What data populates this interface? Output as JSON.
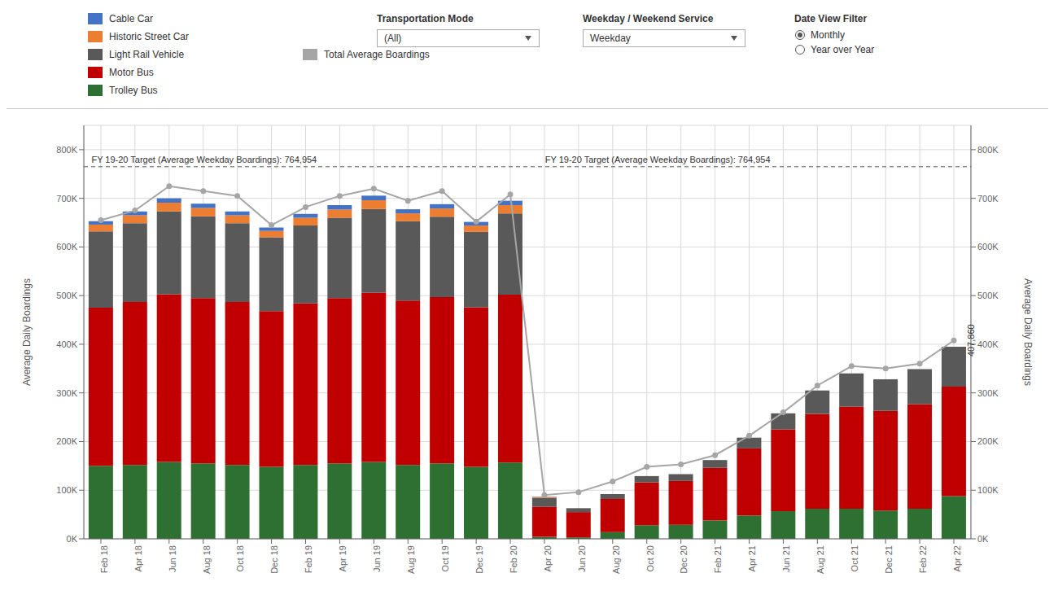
{
  "chart_data": {
    "type": "bar",
    "stacked": true,
    "grid": true,
    "y_label": "Average Daily Boardings",
    "y2_label": "Average Daily Boardings",
    "categories": [
      "Feb 18",
      "Apr 18",
      "Jun 18",
      "Aug 18",
      "Oct 18",
      "Dec 18",
      "Feb 19",
      "Apr 19",
      "Jun 19",
      "Aug 19",
      "Oct 19",
      "Dec 19",
      "Feb 20",
      "Apr 20",
      "Jun 20",
      "Aug 20",
      "Oct 20",
      "Dec 20",
      "Feb 21",
      "Apr 21",
      "Jun 21",
      "Aug 21",
      "Oct 21",
      "Dec 21",
      "Feb 22",
      "Apr 22"
    ],
    "series": [
      {
        "name": "Cable Car",
        "color": "#4472C4",
        "values": [
          7000,
          8000,
          9000,
          9000,
          8000,
          7000,
          8000,
          9000,
          9500,
          8500,
          9000,
          7500,
          9000,
          700,
          0,
          0,
          0,
          0,
          0,
          0,
          0,
          0,
          0,
          0,
          0,
          0
        ]
      },
      {
        "name": "Historic Street Car",
        "color": "#ED7D31",
        "values": [
          14000,
          16000,
          18000,
          17000,
          16000,
          13000,
          16000,
          17000,
          18000,
          16000,
          17000,
          13000,
          17000,
          2000,
          0,
          0,
          0,
          0,
          0,
          0,
          0,
          0,
          0,
          0,
          0,
          0
        ]
      },
      {
        "name": "Light Rail Vehicle",
        "color": "#595959",
        "values": [
          157000,
          162000,
          170000,
          168000,
          162000,
          152000,
          160000,
          165000,
          172000,
          163000,
          165000,
          155000,
          167000,
          18000,
          8000,
          10000,
          13000,
          14000,
          16000,
          22000,
          33000,
          48000,
          68000,
          65000,
          72000,
          82000
        ]
      },
      {
        "name": "Motor Bus",
        "color": "#C00000",
        "values": [
          325000,
          335000,
          345000,
          340000,
          335000,
          320000,
          332000,
          340000,
          348000,
          338000,
          342000,
          328000,
          345000,
          62000,
          52000,
          68000,
          88000,
          90000,
          108000,
          138000,
          168000,
          195000,
          210000,
          205000,
          215000,
          225000
        ]
      },
      {
        "name": "Trolley Bus",
        "color": "#2E7031",
        "values": [
          150000,
          152000,
          158000,
          155000,
          152000,
          148000,
          152000,
          155000,
          158000,
          152000,
          155000,
          148000,
          157000,
          4000,
          3000,
          14000,
          28000,
          29000,
          38000,
          48000,
          57000,
          62000,
          62000,
          58000,
          62000,
          88000
        ]
      },
      {
        "name": "Total Average Boardings",
        "type": "line",
        "color": "#A6A6A6",
        "marker": "o",
        "line_style": "solid",
        "values": [
          655000,
          675000,
          725000,
          715000,
          705000,
          645000,
          682000,
          705000,
          720000,
          695000,
          715000,
          652000,
          708000,
          90000,
          96000,
          118000,
          148000,
          153000,
          172000,
          212000,
          260000,
          315000,
          355000,
          350000,
          360000,
          407860
        ]
      }
    ],
    "ylim": [
      0,
      850000
    ],
    "yticks": [
      {
        "value": 0,
        "label": "0K"
      },
      {
        "value": 100000,
        "label": "100K"
      },
      {
        "value": 200000,
        "label": "200K"
      },
      {
        "value": 300000,
        "label": "300K"
      },
      {
        "value": 400000,
        "label": "400K"
      },
      {
        "value": 500000,
        "label": "500K"
      },
      {
        "value": 600000,
        "label": "600K"
      },
      {
        "value": 700000,
        "label": "700K"
      },
      {
        "value": 800000,
        "label": "800K"
      }
    ],
    "y2lim": [
      0,
      850000
    ],
    "y2ticks": [
      {
        "value": 0,
        "label": "0K"
      },
      {
        "value": 100000,
        "label": "100K"
      },
      {
        "value": 200000,
        "label": "200K"
      },
      {
        "value": 300000,
        "label": "300K"
      },
      {
        "value": 400000,
        "label": "400K"
      },
      {
        "value": 500000,
        "label": "500K"
      },
      {
        "value": 600000,
        "label": "600K"
      },
      {
        "value": 700000,
        "label": "700K"
      },
      {
        "value": 800000,
        "label": "800K"
      }
    ],
    "reference_lines": [
      {
        "value": 764954,
        "label": "FY 19-20 Target (Average Weekday Boardings): 764,954",
        "line_style": "dashed"
      }
    ],
    "annotations": [
      {
        "text": "407,860",
        "x": "Apr 22",
        "y": 407860
      }
    ],
    "controls": [
      {
        "title": "Transportation Mode",
        "selected": "(All)"
      },
      {
        "title": "Weekday / Weekend Service",
        "selected": "Weekday"
      },
      {
        "title": "Date View Filter",
        "options": [
          "Monthly",
          "Year over Year"
        ],
        "selected": "Monthly"
      }
    ]
  }
}
